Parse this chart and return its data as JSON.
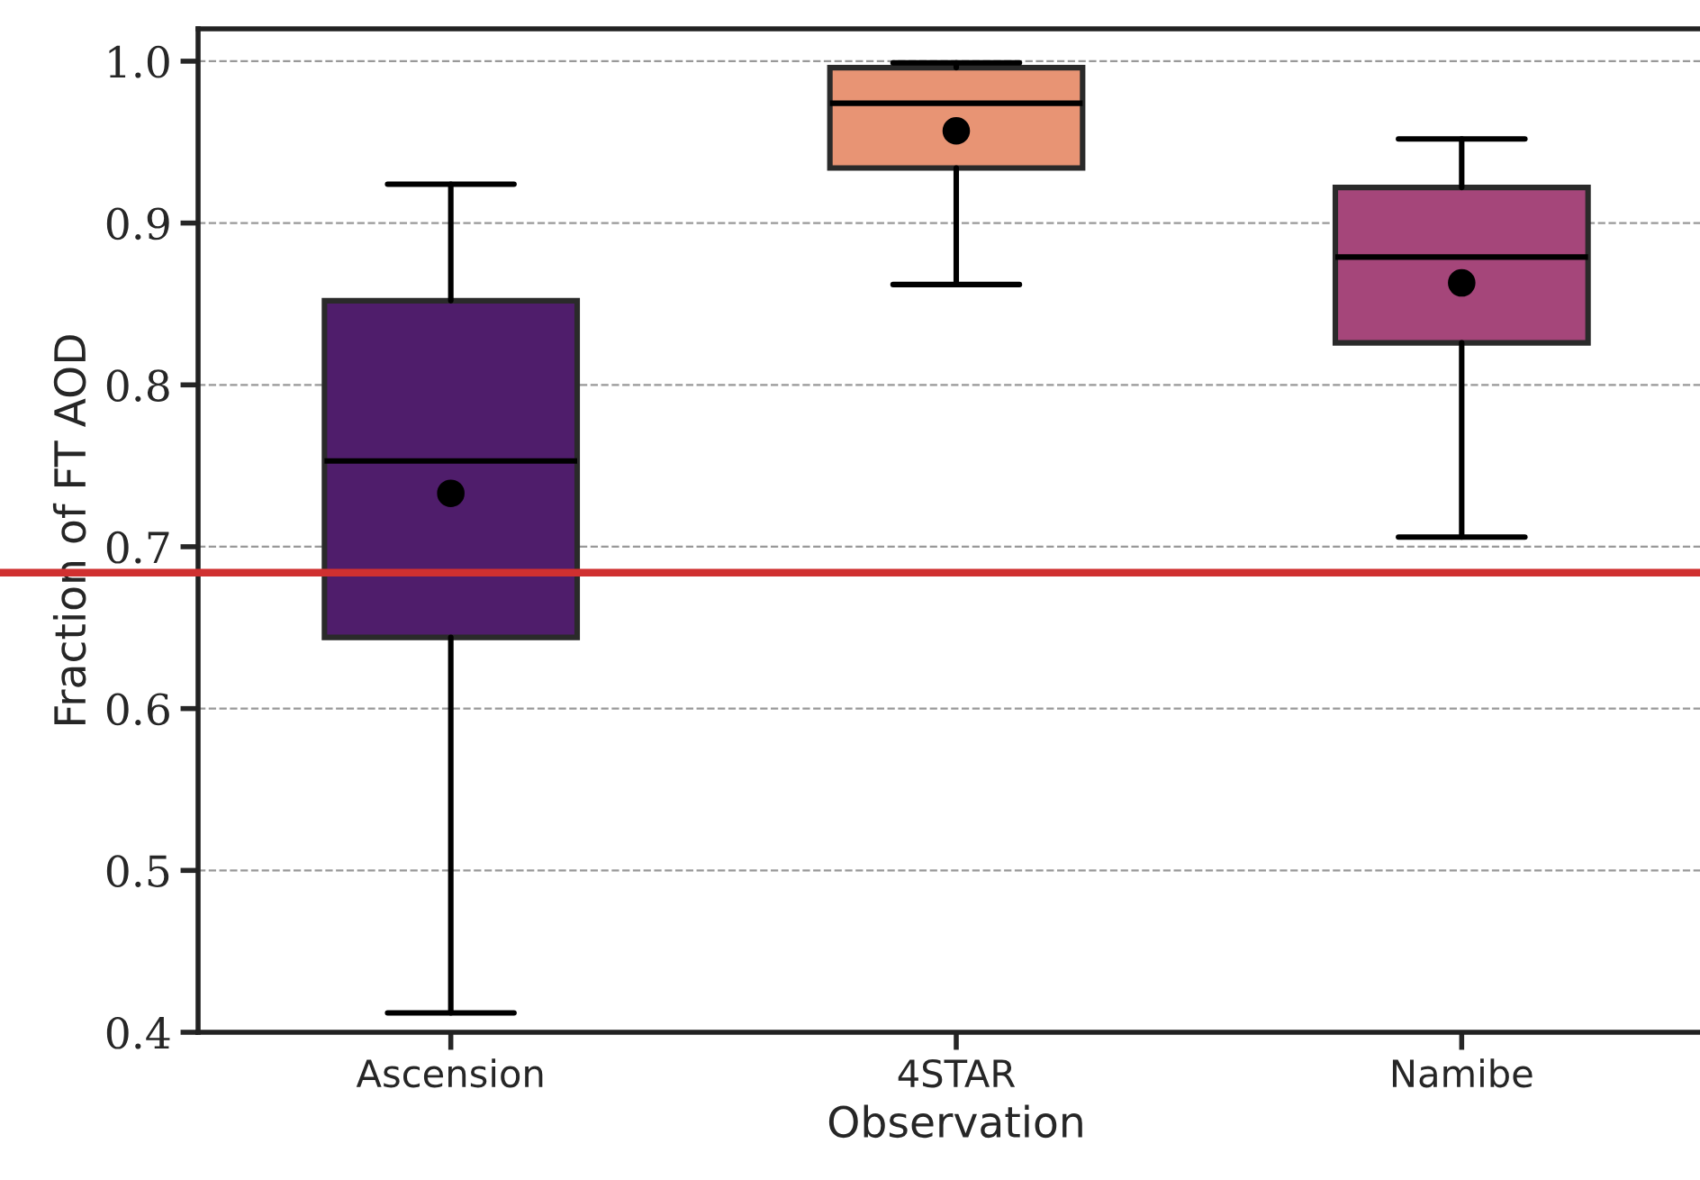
{
  "chart_data": {
    "type": "box",
    "xlabel": "Observation",
    "ylabel": "Fraction of FT AOD",
    "categories": [
      "Ascension",
      "4STAR",
      "Namibe"
    ],
    "colors": [
      "#4f1d6b",
      "#e89474",
      "#a5467a"
    ],
    "boxes": [
      {
        "low": 0.412,
        "q1": 0.644,
        "median": 0.753,
        "q3": 0.852,
        "high": 0.924,
        "mean": 0.733
      },
      {
        "low": 0.862,
        "q1": 0.934,
        "median": 0.974,
        "q3": 0.996,
        "high": 0.999,
        "mean": 0.957
      },
      {
        "low": 0.706,
        "q1": 0.826,
        "median": 0.879,
        "q3": 0.922,
        "high": 0.952,
        "mean": 0.863
      }
    ],
    "ylim": [
      0.4,
      1.02
    ],
    "yticks": [
      {
        "value": 0.4,
        "label": "0.4"
      },
      {
        "value": 0.5,
        "label": "0.5"
      },
      {
        "value": 0.6,
        "label": "0.6"
      },
      {
        "value": 0.7,
        "label": "0.7"
      },
      {
        "value": 0.8,
        "label": "0.8"
      },
      {
        "value": 0.9,
        "label": "0.9"
      },
      {
        "value": 1.0,
        "label": "1.0"
      }
    ],
    "grid": "y",
    "ref_lines": [
      {
        "axis": "y",
        "value": 0.684,
        "color": "#d03030",
        "line_style": "solid"
      }
    ]
  }
}
